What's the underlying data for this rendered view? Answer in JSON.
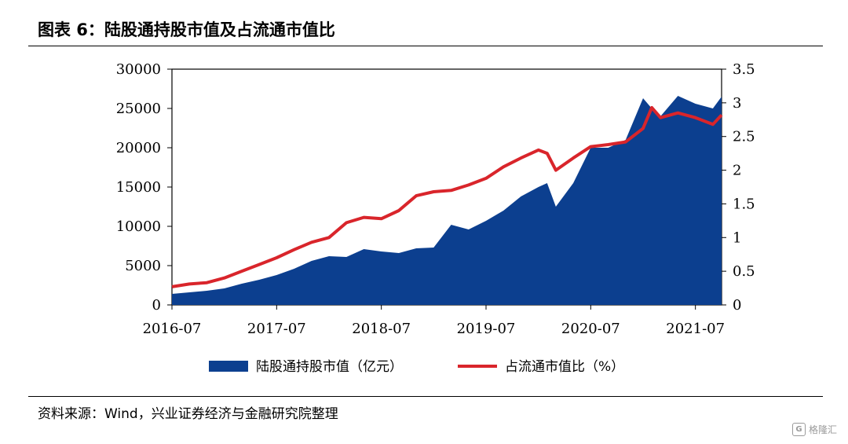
{
  "title": "图表 6：陆股通持股市值及占流通市值比",
  "source": "资料来源：Wind，兴业证券经济与金融研究院整理",
  "watermark": {
    "logo": "G",
    "text": "格隆汇"
  },
  "chart_data": {
    "type": "area",
    "title": "",
    "x_type": "date",
    "x_range": [
      "2016-07",
      "2021-10"
    ],
    "x_ticks": [
      "2016-07",
      "2017-07",
      "2018-07",
      "2019-07",
      "2020-07",
      "2021-07"
    ],
    "ylabel": "",
    "ylabel_right": "",
    "ylim": [
      0,
      30000
    ],
    "yticks": [
      0,
      5000,
      10000,
      15000,
      20000,
      25000,
      30000
    ],
    "ylim_right": [
      0,
      3.5
    ],
    "yticks_right": [
      0,
      0.5,
      1,
      1.5,
      2,
      2.5,
      3,
      3.5
    ],
    "yticks_right_labels": [
      "0",
      "0.5",
      "1",
      "1.5",
      "2",
      "2.5",
      "3",
      "3.5"
    ],
    "grid": false,
    "legend_position": "bottom",
    "colors": {
      "area": "#0c3f8f",
      "line": "#d9252b"
    },
    "series": [
      {
        "name": "陆股通持股市值（亿元）",
        "kind": "area",
        "axis": "left",
        "x": [
          "2016-07",
          "2016-09",
          "2016-11",
          "2017-01",
          "2017-03",
          "2017-05",
          "2017-07",
          "2017-09",
          "2017-11",
          "2018-01",
          "2018-03",
          "2018-05",
          "2018-07",
          "2018-09",
          "2018-11",
          "2019-01",
          "2019-03",
          "2019-05",
          "2019-07",
          "2019-09",
          "2019-11",
          "2020-01",
          "2020-02",
          "2020-03",
          "2020-05",
          "2020-07",
          "2020-09",
          "2020-11",
          "2021-01",
          "2021-02",
          "2021-03",
          "2021-05",
          "2021-07",
          "2021-09",
          "2021-10"
        ],
        "values": [
          1400,
          1600,
          1800,
          2100,
          2700,
          3200,
          3800,
          4600,
          5600,
          6200,
          6100,
          7100,
          6800,
          6600,
          7200,
          7300,
          10200,
          9600,
          10700,
          12000,
          13800,
          15000,
          15500,
          12500,
          15500,
          20000,
          20000,
          21000,
          26300,
          25000,
          24000,
          26600,
          25600,
          25000,
          26500
        ]
      },
      {
        "name": "占流通市值比（%）",
        "kind": "line",
        "axis": "right",
        "x": [
          "2016-07",
          "2016-09",
          "2016-11",
          "2017-01",
          "2017-03",
          "2017-05",
          "2017-07",
          "2017-09",
          "2017-11",
          "2018-01",
          "2018-03",
          "2018-05",
          "2018-07",
          "2018-09",
          "2018-11",
          "2019-01",
          "2019-03",
          "2019-05",
          "2019-07",
          "2019-09",
          "2019-11",
          "2020-01",
          "2020-02",
          "2020-03",
          "2020-05",
          "2020-07",
          "2020-09",
          "2020-11",
          "2021-01",
          "2021-02",
          "2021-03",
          "2021-05",
          "2021-07",
          "2021-09",
          "2021-10"
        ],
        "values": [
          0.27,
          0.31,
          0.33,
          0.4,
          0.5,
          0.6,
          0.7,
          0.82,
          0.93,
          1.0,
          1.22,
          1.3,
          1.28,
          1.4,
          1.62,
          1.68,
          1.7,
          1.78,
          1.88,
          2.05,
          2.18,
          2.3,
          2.25,
          2.0,
          2.18,
          2.35,
          2.38,
          2.42,
          2.62,
          2.93,
          2.78,
          2.85,
          2.78,
          2.68,
          2.82
        ]
      }
    ]
  }
}
